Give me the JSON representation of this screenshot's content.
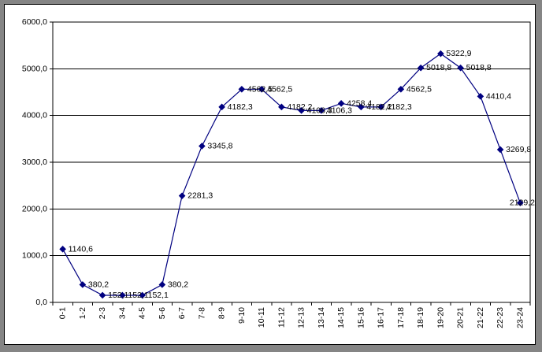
{
  "chart_data": {
    "type": "line",
    "title": "",
    "xlabel": "",
    "ylabel": "",
    "categories": [
      "0-1",
      "1-2",
      "2-3",
      "3-4",
      "4-5",
      "5-6",
      "6-7",
      "7-8",
      "8-9",
      "9-10",
      "10-11",
      "11-12",
      "12-13",
      "13-14",
      "14-15",
      "15-16",
      "16-17",
      "17-18",
      "18-19",
      "19-20",
      "20-21",
      "21-22",
      "22-23",
      "23-24"
    ],
    "values": [
      1140.6,
      380.2,
      152.1,
      152.1,
      152.1,
      380.2,
      2281.3,
      3345.8,
      4182.3,
      4562.5,
      4562.5,
      4182.2,
      4106.3,
      4106.3,
      4258.4,
      4182.2,
      4182.3,
      4562.5,
      5018.8,
      5322.9,
      5018.8,
      4410.4,
      3269.8,
      2129.2
    ],
    "point_labels": [
      "1140,6",
      "380,2",
      "152,1",
      "152,1",
      "152,1",
      "380,2",
      "2281,3",
      "3345,8",
      "4182,3",
      "4562,5",
      "4562,5",
      "4182,2",
      "4106,3",
      "4106,3",
      "4258,4",
      "4182,2",
      "4182,3",
      "4562,5",
      "5018,8",
      "5322,9",
      "5018,8",
      "4410,4",
      "3269,8",
      "2129,2"
    ],
    "ylim": [
      0,
      6000
    ],
    "y_tick_step": 1000,
    "y_tick_labels": [
      "0,0",
      "1000,0",
      "2000,0",
      "3000,0",
      "4000,0",
      "5000,0",
      "6000,0"
    ],
    "grid": true,
    "legend": "none",
    "marker_shape": "diamond",
    "series_color": "#000080",
    "data_label_color": "#000000",
    "axis_color": "#000000",
    "gridline_color": "#000000",
    "panel_background": "#ffffff",
    "frame_background": "#858585"
  }
}
